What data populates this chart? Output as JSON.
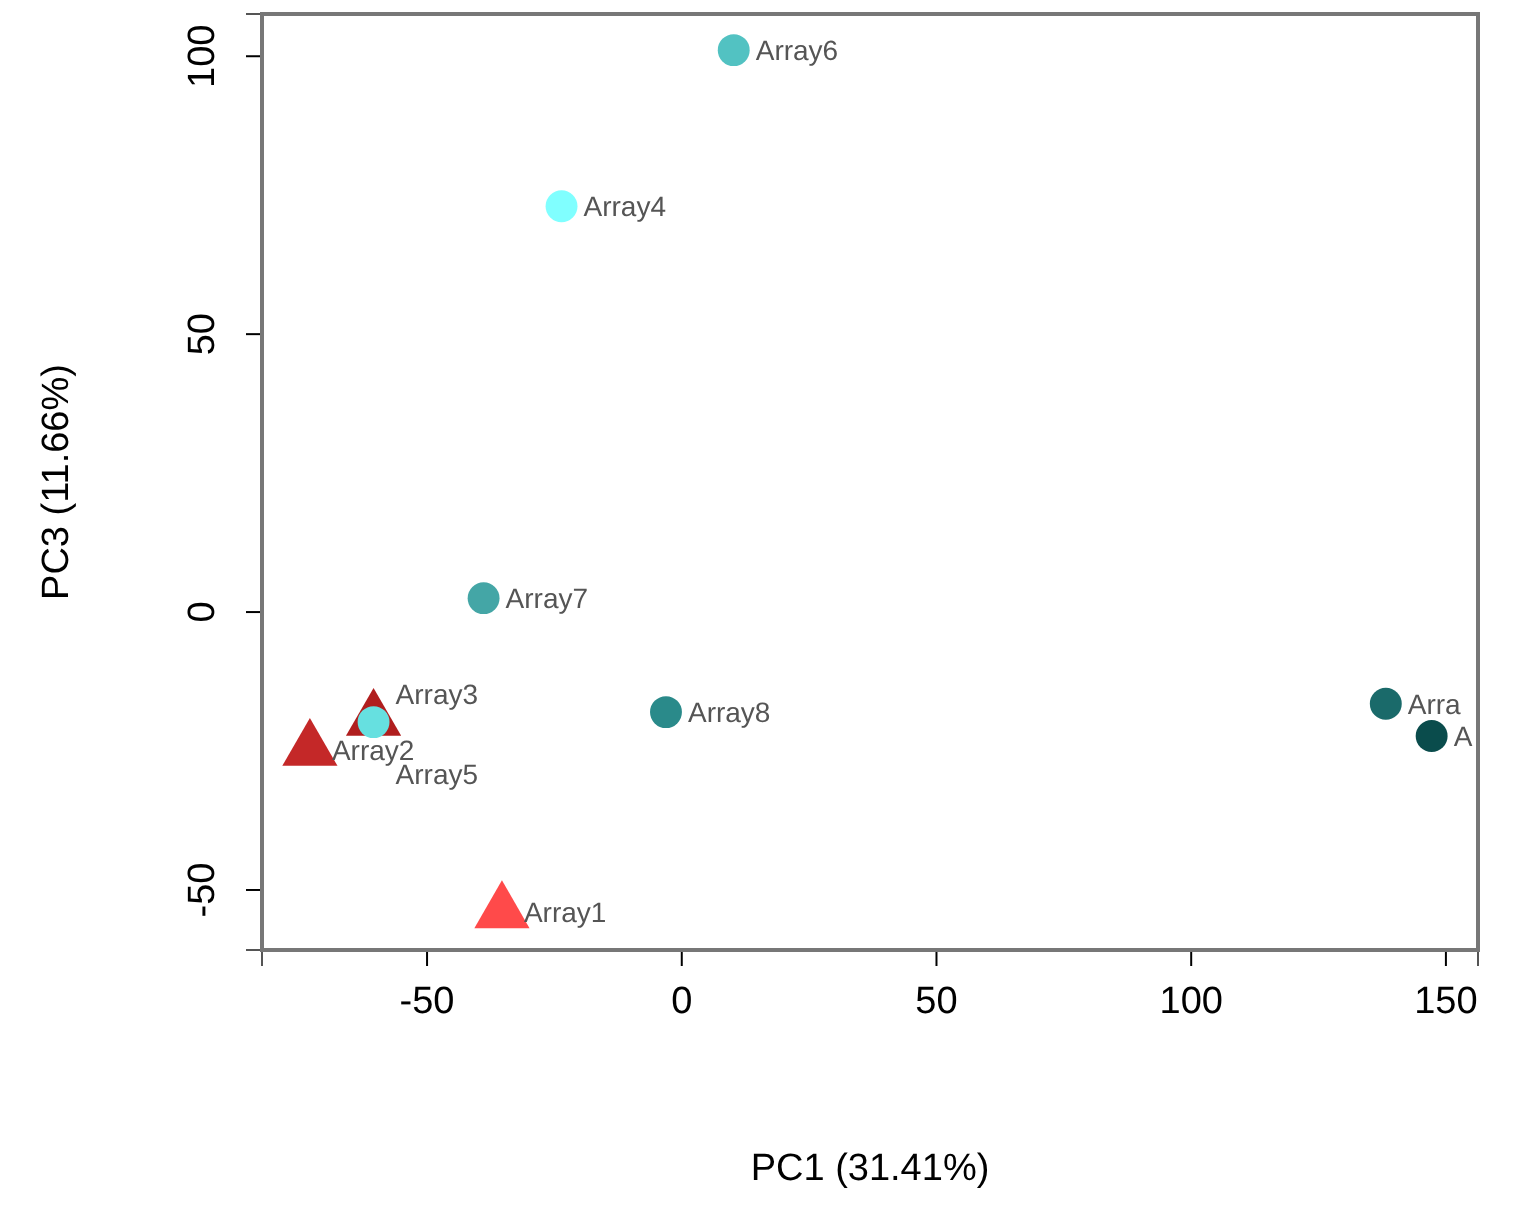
{
  "chart_data": {
    "type": "scatter",
    "xlabel": "PC1 (31.41%)",
    "ylabel": "PC3 (11.66%)",
    "xlim": [
      -82.4,
      156.3
    ],
    "ylim": [
      -60.8,
      107.6
    ],
    "xticks": [
      -50,
      0,
      50,
      100,
      150
    ],
    "yticks": [
      -50,
      0,
      50,
      100
    ],
    "grid": false,
    "series": [
      {
        "marker": "triangle",
        "x": [
          -35.3,
          -73.0,
          -60.5
        ],
        "values": [
          -54.0,
          -24.8,
          -19.4
        ],
        "colors": [
          "#ff4a4a",
          "#c42828",
          "#b01e1e"
        ]
      },
      {
        "marker": "circle",
        "x": [
          -23.6,
          -60.5,
          10.2,
          -38.9,
          -3.1,
          138.2,
          147.2
        ],
        "values": [
          73.0,
          -19.8,
          101.1,
          2.5,
          -18.0,
          -16.5,
          -22.3
        ],
        "colors": [
          "#80ffff",
          "#66e0e0",
          "#52c2c2",
          "#44a6a6",
          "#2a8a8a",
          "#1a6a6a",
          "#0a4c4c"
        ]
      }
    ],
    "annotations": [
      {
        "text": "Array1",
        "x": -35.3,
        "y": -54.0
      },
      {
        "text": "Array2",
        "x": -73.0,
        "y": -24.8
      },
      {
        "text": "Array3",
        "x": -60.5,
        "y": -19.4
      },
      {
        "text": "Array4",
        "x": -23.6,
        "y": 73.0
      },
      {
        "text": "Array5",
        "x": -60.5,
        "y": -19.8
      },
      {
        "text": "Array6",
        "x": 10.2,
        "y": 101.1
      },
      {
        "text": "Array7",
        "x": -38.9,
        "y": 2.5
      },
      {
        "text": "Array8",
        "x": -3.1,
        "y": -18.0
      },
      {
        "text": "Arra",
        "x": 138.2,
        "y": -16.5
      },
      {
        "text": "A",
        "x": 147.2,
        "y": -22.3
      }
    ]
  }
}
